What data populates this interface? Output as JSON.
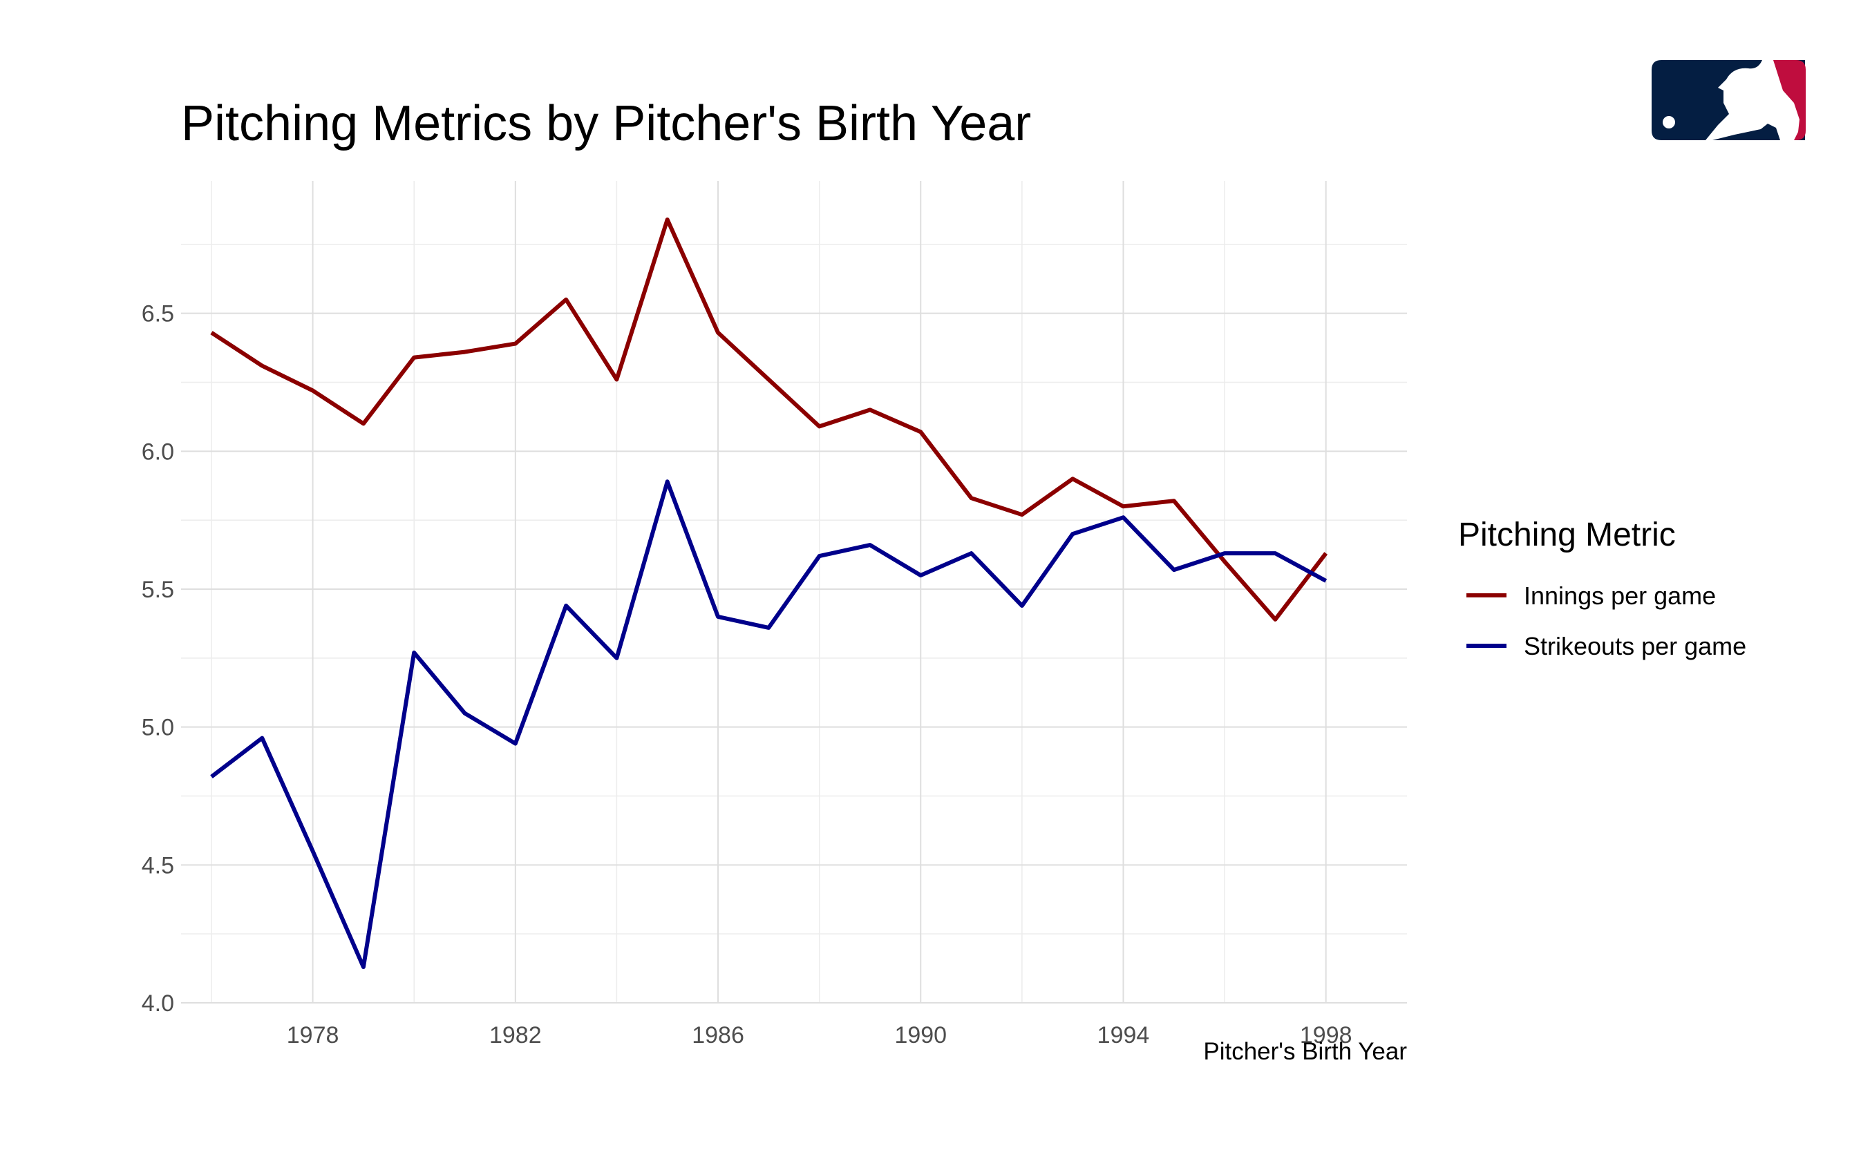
{
  "chart_data": {
    "type": "line",
    "title": "Pitching Metrics by Pitcher's Birth Year",
    "xlabel": "Pitcher's Birth Year",
    "ylabel": "",
    "xlim": [
      1975.4,
      1999.6
    ],
    "ylim": [
      4.0,
      6.98
    ],
    "x_ticks": [
      1978,
      1982,
      1986,
      1990,
      1994,
      1998
    ],
    "y_ticks": [
      4.0,
      4.5,
      5.0,
      5.5,
      6.0,
      6.5
    ],
    "y_tick_labels": [
      "4.0",
      "4.5",
      "5.0",
      "5.5",
      "6.0",
      "6.5"
    ],
    "grid": true,
    "legend_position": "right",
    "legend_title": "Pitching Metric",
    "x": [
      1976,
      1977,
      1978,
      1979,
      1980,
      1981,
      1982,
      1983,
      1984,
      1985,
      1986,
      1987,
      1988,
      1989,
      1990,
      1991,
      1992,
      1993,
      1994,
      1995,
      1996,
      1997,
      1998
    ],
    "series": [
      {
        "name": "Innings per game",
        "color": "#8B0000",
        "values": [
          6.43,
          6.31,
          6.22,
          6.1,
          6.34,
          6.36,
          6.39,
          6.55,
          6.26,
          6.84,
          6.43,
          6.26,
          6.09,
          6.15,
          6.07,
          5.83,
          5.77,
          5.9,
          5.8,
          5.82,
          5.6,
          5.39,
          5.63
        ]
      },
      {
        "name": "Strikeouts per game",
        "color": "#00008B",
        "values": [
          4.82,
          4.96,
          4.55,
          4.13,
          5.27,
          5.05,
          4.94,
          5.44,
          5.25,
          5.89,
          5.4,
          5.36,
          5.62,
          5.66,
          5.55,
          5.63,
          5.44,
          5.7,
          5.76,
          5.57,
          5.63,
          5.63,
          5.53
        ]
      }
    ]
  },
  "logo": {
    "name": "mlb-logo",
    "colors": {
      "left": "#041E42",
      "right": "#BF0D3E",
      "silhouette": "#FFFFFF"
    }
  }
}
